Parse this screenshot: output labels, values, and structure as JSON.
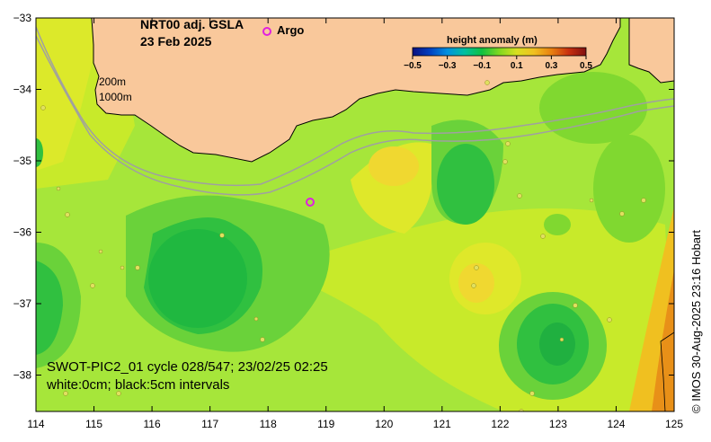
{
  "title": {
    "line1": "NRT00 adj. GSLA",
    "line2": "23 Feb 2025"
  },
  "legend": {
    "argo_label": "Argo",
    "argo_color": "#e020e0"
  },
  "colorbar": {
    "title": "height anomaly (m)",
    "ticks": [
      "−0.5",
      "−0.3",
      "−0.1",
      "0.1",
      "0.3",
      "0.5"
    ],
    "range": [
      -0.5,
      0.5
    ],
    "colors": [
      "#0a1080",
      "#0050c0",
      "#00a0e0",
      "#10c060",
      "#60d020",
      "#d0e020",
      "#f0c020",
      "#e07010",
      "#c02010",
      "#801010"
    ]
  },
  "contour_labels": {
    "c200": "200m",
    "c1000": "1000m"
  },
  "footer": {
    "line1": "SWOT-PIC2_01 cycle 028/547; 23/02/25 02:25",
    "line2": "white:0cm; black:5cm intervals"
  },
  "credit": "© IMOS 30-Aug-2025 23:16 Hobart",
  "axes": {
    "x_ticks": [
      "114",
      "115",
      "116",
      "117",
      "118",
      "119",
      "120",
      "121",
      "122",
      "123",
      "124",
      "125"
    ],
    "y_ticks": [
      "−33",
      "−34",
      "−35",
      "−36",
      "−37",
      "−38"
    ]
  },
  "colors": {
    "land": "#f9c89b",
    "sea_base": "#a6e63a"
  }
}
